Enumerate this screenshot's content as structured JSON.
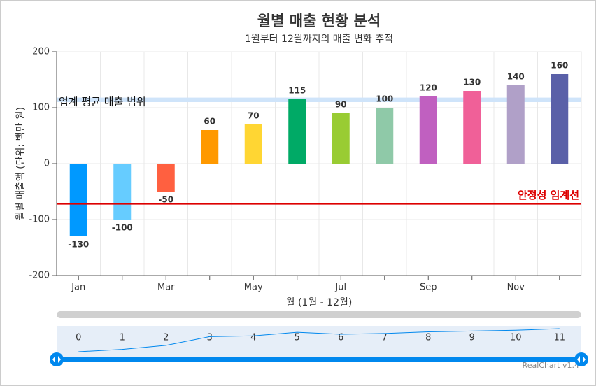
{
  "chart_data": {
    "type": "bar",
    "title": "월별 매출 현황 분석",
    "subtitle": "1월부터 12월까지의 매출 변화 추적",
    "x_label": "월 (1월 - 12월)",
    "y_label": "월별 매출액 (단위: 백만 원)",
    "categories": [
      "Jan",
      null,
      "Mar",
      null,
      "May",
      null,
      "Jul",
      null,
      "Sep",
      null,
      "Nov",
      null
    ],
    "values": [
      -130,
      -100,
      -50,
      60,
      70,
      115,
      90,
      100,
      120,
      130,
      140,
      160
    ],
    "colors": [
      "#0099ff",
      "#66ccff",
      "#ff6040",
      "#ff9900",
      "#ffd633",
      "#00aa66",
      "#99cc33",
      "#8fc9a8",
      "#c060c0",
      "#f06098",
      "#b0a0c8",
      "#5a60a8"
    ],
    "ylim": [
      -200,
      200
    ],
    "yticks": [
      -200,
      -100,
      0,
      100,
      200
    ],
    "grid": true,
    "band": {
      "label": "업계 평균 매출 범위",
      "from": 110,
      "to": 118,
      "color": "#cfe4fa"
    },
    "threshold": {
      "label": "안정성 임계선",
      "value": -72,
      "color": "#dd0000"
    },
    "navigator": {
      "ticks": [
        0,
        1,
        2,
        3,
        4,
        5,
        6,
        7,
        8,
        9,
        10,
        11
      ],
      "color": "#0088ee"
    },
    "credit": "RealChart v1.4"
  }
}
